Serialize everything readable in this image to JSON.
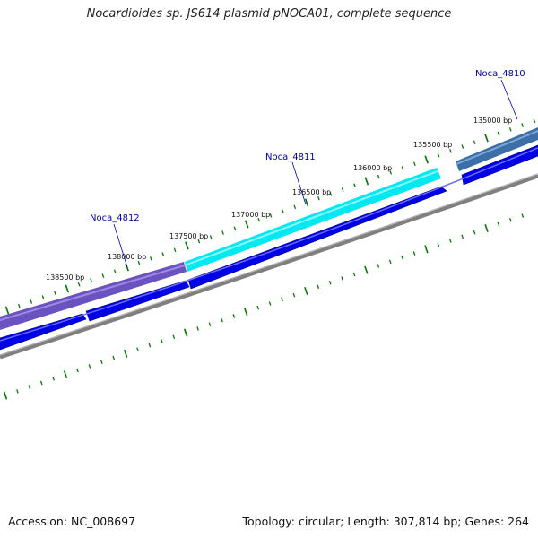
{
  "title": "Nocardioides sp. JS614 plasmid pNOCA01, complete sequence",
  "footer": {
    "accession": "Accession: NC_008697",
    "summary": "Topology: circular; Length: 307,814 bp; Genes: 264"
  },
  "colors": {
    "backbone": "#7f7f7f",
    "cds": "#0000e6",
    "tick": "#007a00",
    "gene_label": "#0000aa"
  },
  "scale": {
    "labels": [
      {
        "bp": 135000,
        "text": "135000 bp"
      },
      {
        "bp": 135500,
        "text": "135500 bp"
      },
      {
        "bp": 136000,
        "text": "136000 bp"
      },
      {
        "bp": 136500,
        "text": "136500 bp"
      },
      {
        "bp": 137000,
        "text": "137000 bp"
      },
      {
        "bp": 137500,
        "text": "137500 bp"
      },
      {
        "bp": 138000,
        "text": "138000 bp"
      },
      {
        "bp": 138500,
        "text": "138500 bp"
      }
    ]
  },
  "genes": [
    {
      "name": "Noca_4810",
      "color": "#3a6fa8"
    },
    {
      "name": "Noca_4811",
      "color": "#00e8f0"
    },
    {
      "name": "Noca_4812",
      "color": "#6a52c0"
    }
  ]
}
